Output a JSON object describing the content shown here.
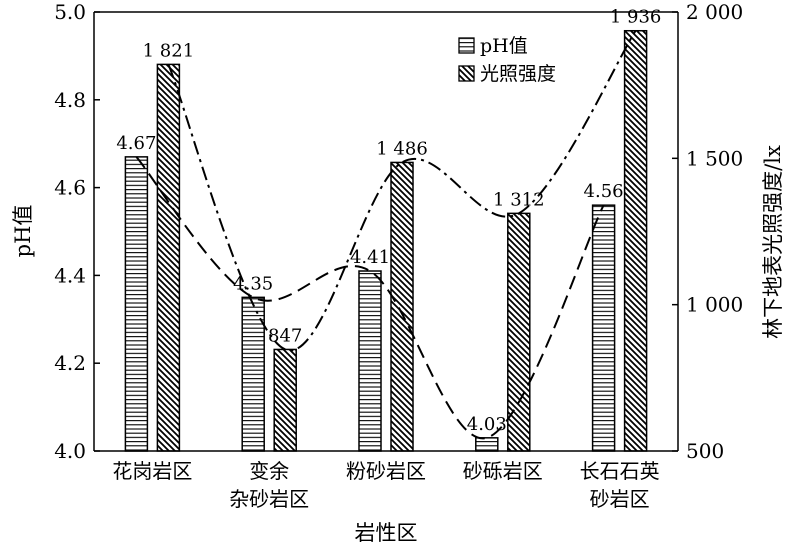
{
  "chart_data": {
    "type": "bar",
    "title": "",
    "xlabel": "岩性区",
    "ylabel_left": "pH值",
    "ylabel_right": "林下地表光照强度/lx",
    "categories": [
      [
        "花岗岩区"
      ],
      [
        "变余",
        "杂砂岩区"
      ],
      [
        "粉砂岩区"
      ],
      [
        "砂砾岩区"
      ],
      [
        "长石石英",
        "砂岩区"
      ]
    ],
    "ylim_left": [
      4.0,
      5.0
    ],
    "ylim_right": [
      500,
      2000
    ],
    "left_ticks": [
      "4.0",
      "4.2",
      "4.4",
      "4.6",
      "4.8",
      "5.0"
    ],
    "left_tick_values": [
      4.0,
      4.2,
      4.4,
      4.6,
      4.8,
      5.0
    ],
    "right_ticks": [
      "500",
      "1 000",
      "1 500",
      "2 000"
    ],
    "right_tick_values": [
      500,
      1000,
      1500,
      2000
    ],
    "series": [
      {
        "name": "pH值",
        "axis": "left",
        "pattern": "horizontal-lines",
        "values": [
          4.67,
          4.35,
          4.41,
          4.03,
          4.56
        ],
        "labels": [
          "4.67",
          "4.35",
          "4.41",
          "4.03",
          "4.56"
        ],
        "trend_line": "dashed"
      },
      {
        "name": "光照强度",
        "axis": "right",
        "pattern": "diagonal-hatch",
        "values": [
          1821,
          847,
          1486,
          1312,
          1936
        ],
        "labels": [
          "1 821",
          "847",
          "1 486",
          "1 312",
          "1 936"
        ],
        "trend_line": "dash-dot"
      }
    ],
    "legend_position": "top-right",
    "grid": false
  }
}
